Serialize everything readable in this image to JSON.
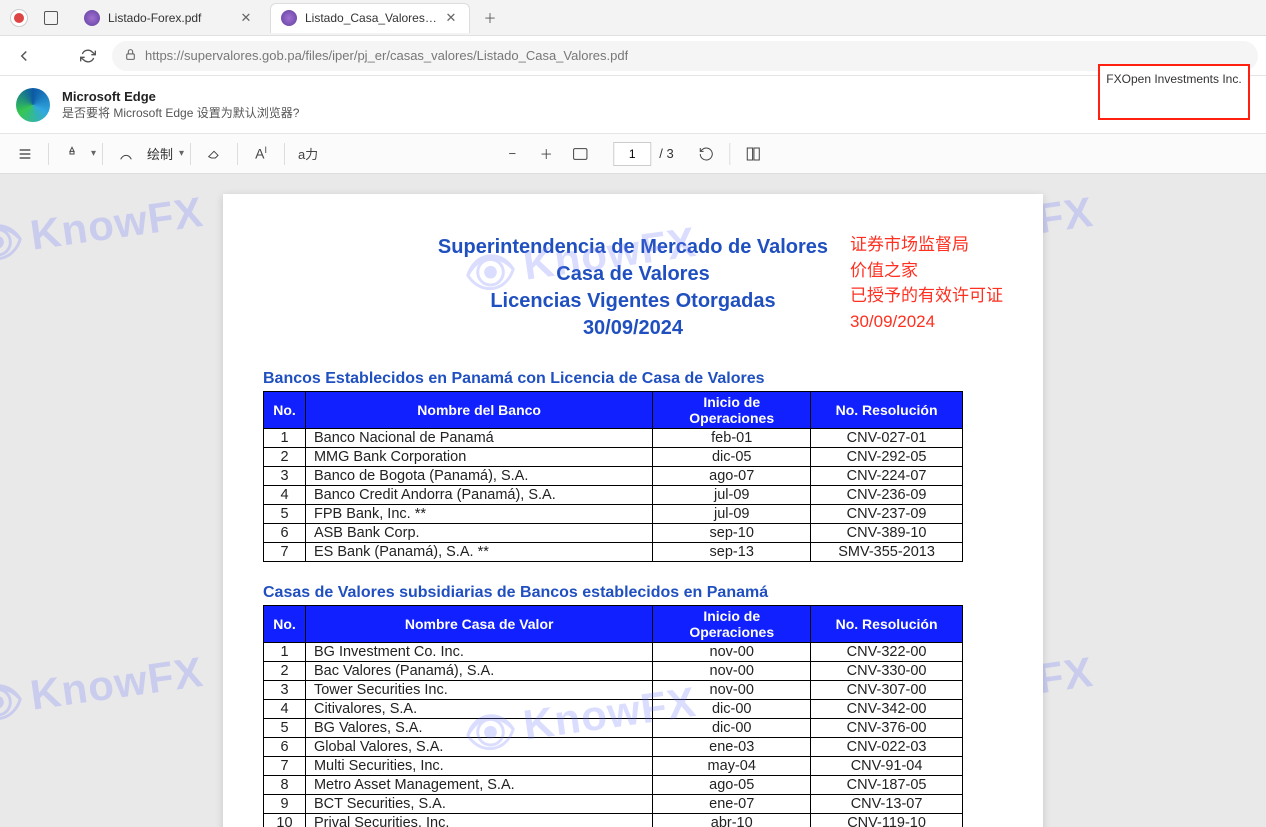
{
  "tabs": [
    {
      "title": "Listado-Forex.pdf",
      "active": false
    },
    {
      "title": "Listado_Casa_Valores.pdf",
      "active": true
    }
  ],
  "url": "https://supervalores.gob.pa/files/iper/pj_er/casas_valores/Listado_Casa_Valores.pdf",
  "banner": {
    "title": "Microsoft Edge",
    "sub": "是否要将 Microsoft Edge 设置为默认浏览器?"
  },
  "pdfbar": {
    "draw_label": "绘制",
    "page_current": "1",
    "page_total": "/ 3"
  },
  "highlight": "FXOpen Investments Inc.",
  "doc_title": [
    "Superintendencia de Mercado de Valores",
    "Casa de Valores",
    "Licencias  Vigentes Otorgadas",
    "30/09/2024"
  ],
  "annotation": [
    "证券市场监督局",
    "价值之家",
    "已授予的有效许可证",
    "30/09/2024"
  ],
  "watermark": "KnowFX",
  "section1": {
    "title": "Bancos Establecidos en Panamá con Licencia de Casa de Valores",
    "headers": [
      "No.",
      "Nombre del Banco",
      "Inicio de Operaciones",
      "No. Resolución"
    ],
    "rows": [
      [
        "1",
        "Banco Nacional de Panamá",
        "feb-01",
        "CNV-027-01"
      ],
      [
        "2",
        "MMG Bank Corporation",
        "dic-05",
        "CNV-292-05"
      ],
      [
        "3",
        "Banco de Bogota (Panamá), S.A.",
        "ago-07",
        "CNV-224-07"
      ],
      [
        "4",
        "Banco Credit Andorra (Panamá), S.A.",
        "jul-09",
        "CNV-236-09"
      ],
      [
        "5",
        "FPB Bank, Inc. **",
        "jul-09",
        "CNV-237-09"
      ],
      [
        "6",
        "ASB Bank Corp.",
        "sep-10",
        "CNV-389-10"
      ],
      [
        "7",
        "ES Bank (Panamá), S.A. **",
        "sep-13",
        "SMV-355-2013"
      ]
    ]
  },
  "section2": {
    "title": "Casas de Valores  subsidiarias  de Bancos establecidos en Panamá",
    "headers": [
      "No.",
      "Nombre Casa de Valor",
      "Inicio de Operaciones",
      "No. Resolución"
    ],
    "rows": [
      [
        "1",
        "BG Investment Co. Inc.",
        "nov-00",
        "CNV-322-00"
      ],
      [
        "2",
        "Bac Valores (Panamá), S.A.",
        "nov-00",
        "CNV-330-00"
      ],
      [
        "3",
        "Tower Securities Inc.",
        "nov-00",
        "CNV-307-00"
      ],
      [
        "4",
        "Citivalores, S.A.",
        "dic-00",
        "CNV-342-00"
      ],
      [
        "5",
        "BG Valores, S.A.",
        "dic-00",
        "CNV-376-00"
      ],
      [
        "6",
        "Global Valores, S.A.",
        "ene-03",
        "CNV-022-03"
      ],
      [
        "7",
        "Multi Securities, Inc.",
        "may-04",
        "CNV-91-04"
      ],
      [
        "8",
        "Metro Asset Management, S.A.",
        "ago-05",
        "CNV-187-05"
      ],
      [
        "9",
        "BCT Securities, S.A.",
        "ene-07",
        "CNV-13-07"
      ],
      [
        "10",
        "Prival Securities, Inc.",
        "abr-10",
        "CNV-119-10"
      ]
    ]
  }
}
